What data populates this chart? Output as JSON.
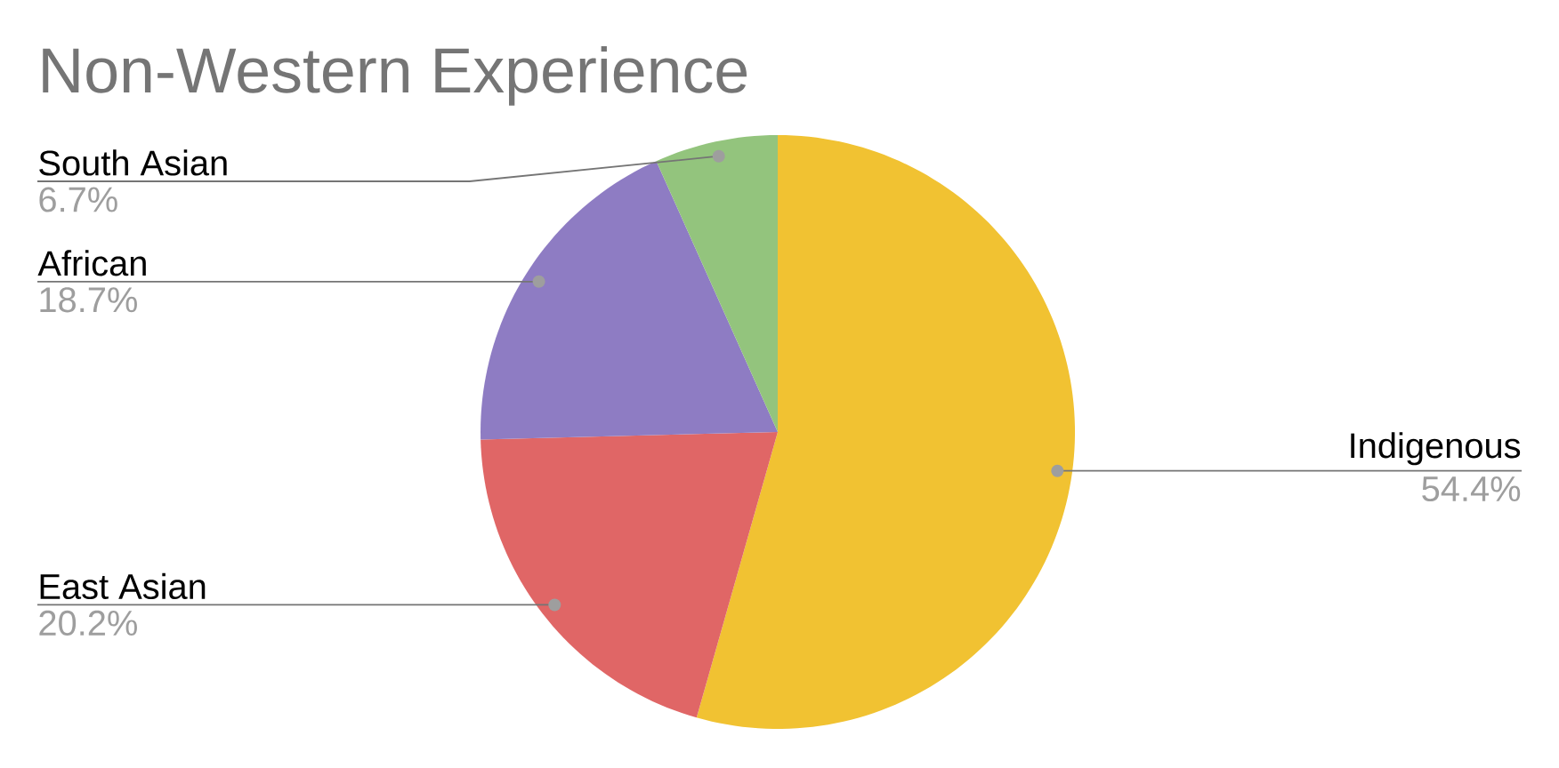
{
  "chart_data": {
    "type": "pie",
    "title": "Non-Western Experience",
    "categories": [
      "Indigenous",
      "East Asian",
      "African",
      "South Asian"
    ],
    "values": [
      54.4,
      20.2,
      18.7,
      6.7
    ],
    "colors": [
      "#f1c232",
      "#e06666",
      "#8e7cc3",
      "#93c47d"
    ],
    "value_labels": [
      "54.4%",
      "20.2%",
      "18.7%",
      "6.7%"
    ]
  }
}
